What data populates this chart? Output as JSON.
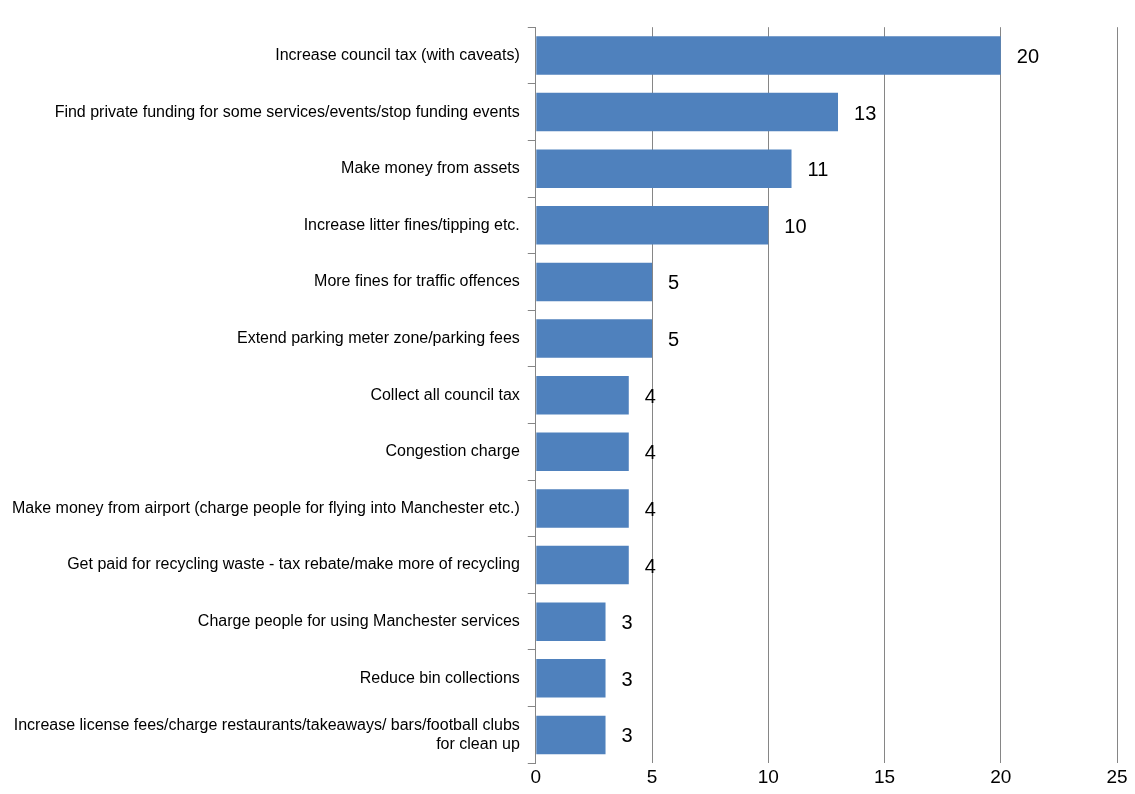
{
  "chart_data": {
    "type": "bar",
    "orientation": "horizontal",
    "categories": [
      "Increase council tax (with caveats)",
      "Find private funding for some services/events/stop funding events",
      "Make money from assets",
      "Increase litter fines/tipping etc.",
      "More fines for traffic offences",
      "Extend parking meter zone/parking fees",
      "Collect all council tax",
      "Congestion charge",
      "Make money from airport (charge people for flying into Manchester etc.)",
      "Get paid for recycling waste - tax rebate/make more of recycling",
      "Charge people for using Manchester services",
      "Reduce bin collections",
      "Increase license fees/charge restaurants/takeaways/ bars/football clubs for clean up"
    ],
    "values": [
      20,
      13,
      11,
      10,
      5,
      5,
      4,
      4,
      4,
      4,
      3,
      3,
      3
    ],
    "color": "#4f81bd",
    "xlim": [
      0,
      25
    ],
    "xticks": [
      0,
      5,
      10,
      15,
      20,
      25
    ],
    "grid": "x",
    "data_labels": true,
    "legend": false
  }
}
